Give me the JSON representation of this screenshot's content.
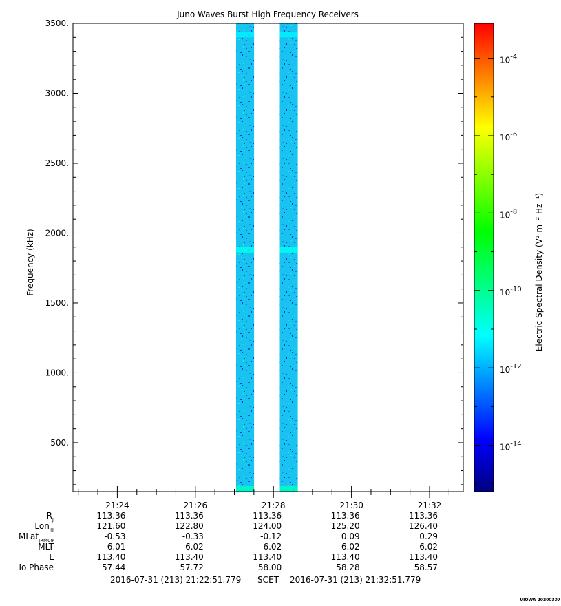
{
  "chart_data": {
    "type": "heatmap",
    "title": "Juno Waves Burst High Frequency Receivers",
    "ylabel": "Frequency (kHz)",
    "ylim": [
      150,
      3500
    ],
    "yticks": [
      500,
      1000,
      1500,
      2000,
      2500,
      3000,
      3500
    ],
    "ytick_labels": [
      "500.",
      "1000.",
      "1500.",
      "2000.",
      "2500.",
      "3000.",
      "3500."
    ],
    "xlim": [
      "21:22:51.779",
      "21:32:51.779"
    ],
    "xtick_labels": [
      "21:24",
      "21:26",
      "21:28",
      "21:30",
      "21:32"
    ],
    "xtick_minutes": [
      1.136,
      3.136,
      5.136,
      7.136,
      9.136
    ],
    "data_intervals_minutes": [
      [
        4.18,
        4.64
      ],
      [
        5.3,
        5.76
      ]
    ],
    "typical_log10_density": -12.3,
    "features": [
      {
        "freq_khz": 3420,
        "log10_density": -11.3
      },
      {
        "freq_khz": 1880,
        "log10_density": -11.0
      },
      {
        "freq_khz": 170,
        "log10_density": -10.5
      }
    ],
    "colorbar": {
      "label": "Electric Spectral Density (V² m⁻² Hz⁻¹)",
      "log_scale": true,
      "range_log10": [
        -15.2,
        -3.1
      ],
      "tick_exponents": [
        -4,
        -6,
        -8,
        -10,
        -12,
        -14
      ],
      "colors": [
        "#000080",
        "#0000ff",
        "#0080ff",
        "#00ffff",
        "#00ff80",
        "#00ff00",
        "#80ff00",
        "#ffff00",
        "#ff8000",
        "#ff0000"
      ]
    }
  },
  "ephemeris": {
    "rows": [
      {
        "label": "R",
        "sub": "J",
        "values": [
          "113.36",
          "113.36",
          "113.36",
          "113.36",
          "113.36"
        ]
      },
      {
        "label": "Lon",
        "sub": "III",
        "values": [
          "121.60",
          "122.80",
          "124.00",
          "125.20",
          "126.40"
        ]
      },
      {
        "label": "MLat",
        "sub": "JRM09",
        "values": [
          "-0.53",
          "-0.33",
          "-0.12",
          "0.09",
          "0.29"
        ]
      },
      {
        "label": "MLT",
        "sub": "",
        "values": [
          "6.01",
          "6.02",
          "6.02",
          "6.02",
          "6.02"
        ]
      },
      {
        "label": "L",
        "sub": "",
        "values": [
          "113.40",
          "113.40",
          "113.40",
          "113.40",
          "113.40"
        ]
      },
      {
        "label": "Io Phase",
        "sub": "",
        "values": [
          "57.44",
          "57.72",
          "58.00",
          "58.28",
          "58.57"
        ]
      }
    ]
  },
  "footer": {
    "start": "2016-07-31 (213) 21:22:51.779",
    "scet": "SCET",
    "end": "2016-07-31 (213) 21:32:51.779"
  },
  "credit": "UIOWA 20200307"
}
